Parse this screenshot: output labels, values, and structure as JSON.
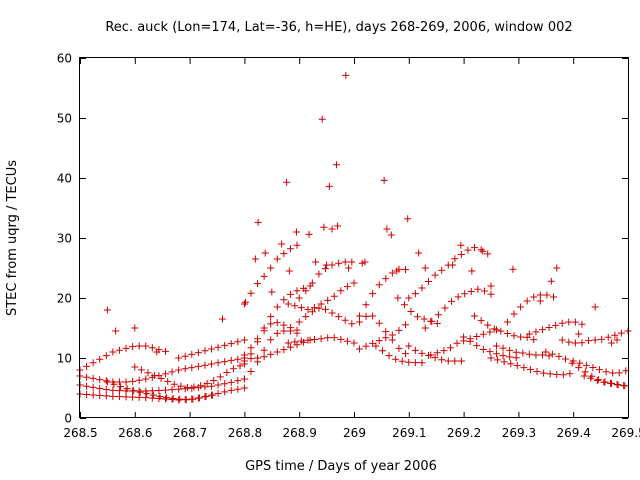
{
  "chart_data": {
    "type": "scatter",
    "title": "Rec. auck (Lon=174, Lat=-36, h=HE), days 268-269, 2006, window 002",
    "xlabel": "GPS time / Days of year 2006",
    "ylabel": "STEC from uqrg / TECUs",
    "xlim": [
      268.5,
      269.5
    ],
    "ylim": [
      0,
      60
    ],
    "x_ticks": [
      "268.5",
      "268.6",
      "268.7",
      "268.8",
      "268.9",
      "269",
      "269.1",
      "269.2",
      "269.3",
      "269.4",
      "269.5"
    ],
    "y_ticks": [
      "0",
      "10",
      "20",
      "30",
      "40",
      "50",
      "60"
    ],
    "marker": "plus",
    "color": "#d00000",
    "grid": false,
    "legend": "none",
    "series": [
      {
        "tracks": [
          {
            "x0": 268.5,
            "x1": 268.8,
            "y": [
              5.5,
              5.0,
              4.6,
              4.5,
              4.5,
              4.6,
              4.8,
              5.0,
              5.3,
              5.8,
              6.5
            ]
          },
          {
            "x0": 268.5,
            "x1": 268.8,
            "y": [
              7.0,
              6.5,
              6.0,
              6.0,
              6.5,
              7.2,
              8.0,
              8.5,
              9.0,
              9.5,
              10.0
            ]
          },
          {
            "x0": 268.5,
            "x1": 268.66,
            "y": [
              8.0,
              9.0,
              10.0,
              11.0,
              11.5,
              12.0,
              12.0,
              11.5,
              11.0
            ]
          },
          {
            "x0": 268.5,
            "x1": 268.8,
            "y": [
              4.0,
              3.8,
              3.6,
              3.5,
              3.4,
              3.2,
              3.0,
              3.2,
              3.8,
              4.5,
              5.0
            ]
          },
          {
            "x0": 268.55,
            "x1": 268.75,
            "y": [
              6.0,
              5.2,
              4.5,
              4.0,
              3.5,
              3.2,
              3.0,
              3.5,
              4.0
            ]
          },
          {
            "x0": 268.6,
            "x1": 268.8,
            "y": [
              8.5,
              7.5,
              6.5,
              5.5,
              5.0,
              5.5,
              6.5,
              8.0,
              9.0
            ]
          },
          {
            "x0": 268.68,
            "x1": 268.8,
            "y": [
              10.0,
              10.5,
              11.0,
              11.5,
              12.0,
              12.5,
              13.0
            ]
          },
          {
            "x0": 268.8,
            "x1": 268.9,
            "y": [
              6.5,
              8.0,
              10.0,
              12.5,
              14.0,
              14.5,
              14.5,
              14.0
            ]
          },
          {
            "x0": 268.8,
            "x1": 268.9,
            "y": [
              9.0,
              11.0,
              13.5,
              15.5,
              16.0,
              15.5,
              15.0,
              14.5
            ]
          },
          {
            "x0": 268.8,
            "x1": 268.92,
            "y": [
              9.5,
              10.0,
              10.0,
              10.5,
              11.0,
              11.5,
              12.0,
              12.5,
              13.0
            ]
          },
          {
            "x0": 268.8,
            "x1": 268.92,
            "y": [
              10.5,
              12.0,
              14.0,
              16.5,
              18.5,
              20.0,
              21.0,
              21.5,
              22.0
            ]
          },
          {
            "x0": 268.8,
            "x1": 268.9,
            "y": [
              19.0,
              22.0,
              24.0,
              26.5,
              28.0,
              29.0
            ]
          },
          {
            "x0": 268.88,
            "x1": 269.0,
            "y": [
              12.5,
              12.8,
              13.0,
              13.2,
              13.5,
              13.0,
              12.5
            ]
          },
          {
            "x0": 268.88,
            "x1": 269.0,
            "y": [
              19.0,
              18.5,
              18.0,
              19.0,
              20.0,
              21.5,
              22.5
            ]
          },
          {
            "x0": 268.9,
            "x1": 269.0,
            "y": [
              16.0,
              17.5,
              18.5,
              17.5,
              16.5,
              15.5
            ]
          },
          {
            "x0": 268.9,
            "x1": 269.0,
            "y": [
              20.0,
              22.0,
              24.5,
              25.5,
              26.0,
              26.0
            ]
          },
          {
            "x0": 269.01,
            "x1": 269.1,
            "y": [
              11.5,
              12.0,
              12.5,
              13.0,
              13.5,
              14.0,
              15.0,
              16.0
            ]
          },
          {
            "x0": 269.01,
            "x1": 269.1,
            "y": [
              16.0,
              17.0,
              17.0,
              15.5,
              14.0,
              12.5,
              11.0,
              10.5
            ]
          },
          {
            "x0": 269.01,
            "x1": 269.1,
            "y": [
              17.0,
              19.0,
              21.0,
              22.5,
              23.5,
              24.5,
              25.0,
              24.5
            ]
          },
          {
            "x0": 269.04,
            "x1": 269.13,
            "y": [
              12.0,
              11.0,
              10.0,
              9.5,
              9.3,
              9.2,
              9.2
            ]
          },
          {
            "x0": 269.08,
            "x1": 269.16,
            "y": [
              20.0,
              18.5,
              17.0,
              16.5,
              16.0,
              15.5
            ]
          },
          {
            "x0": 269.1,
            "x1": 269.2,
            "y": [
              12.0,
              11.0,
              10.5,
              10.0,
              9.5,
              9.5,
              9.5
            ]
          },
          {
            "x0": 269.1,
            "x1": 269.25,
            "y": [
              20.0,
              21.0,
              22.5,
              24.0,
              25.0,
              26.5,
              27.5,
              28.5,
              28.0,
              27.0
            ]
          },
          {
            "x0": 269.13,
            "x1": 269.26,
            "y": [
              15.0,
              16.5,
              18.0,
              19.5,
              20.5,
              21.0,
              21.5,
              21.0,
              20.0
            ]
          },
          {
            "x0": 269.14,
            "x1": 269.27,
            "y": [
              10.5,
              11.0,
              11.5,
              12.5,
              13.0,
              13.5,
              14.0,
              14.5,
              15.0
            ]
          },
          {
            "x0": 269.2,
            "x1": 269.3,
            "y": [
              13.5,
              12.5,
              11.5,
              11.0,
              10.5,
              10.2,
              10.0
            ]
          },
          {
            "x0": 269.22,
            "x1": 269.33,
            "y": [
              17.0,
              16.0,
              15.0,
              14.5,
              14.0,
              13.5,
              13.5,
              13.0
            ]
          },
          {
            "x0": 269.25,
            "x1": 269.4,
            "y": [
              10.0,
              9.5,
              9.0,
              8.5,
              8.0,
              7.5,
              7.3,
              7.2,
              7.5
            ]
          },
          {
            "x0": 269.26,
            "x1": 269.36,
            "y": [
              12.0,
              11.5,
              11.0,
              10.8,
              10.5,
              10.5,
              10.3
            ]
          },
          {
            "x0": 269.28,
            "x1": 269.37,
            "y": [
              16.0,
              18.0,
              19.5,
              20.5,
              20.5,
              20.0
            ]
          },
          {
            "x0": 269.32,
            "x1": 269.42,
            "y": [
              14.0,
              14.5,
              15.0,
              15.5,
              16.0,
              16.0,
              15.5
            ]
          },
          {
            "x0": 269.35,
            "x1": 269.5,
            "y": [
              11.0,
              10.5,
              10.0,
              9.0,
              8.0,
              7.0,
              6.2,
              5.8,
              5.5,
              5.3
            ]
          },
          {
            "x0": 269.38,
            "x1": 269.5,
            "y": [
              13.0,
              12.5,
              12.5,
              13.0,
              13.0,
              13.5,
              14.0,
              14.5
            ]
          },
          {
            "x0": 269.4,
            "x1": 269.5,
            "y": [
              9.5,
              9.0,
              8.5,
              8.0,
              7.5,
              7.5,
              8.0
            ]
          },
          {
            "x0": 269.42,
            "x1": 269.5,
            "y": [
              7.0,
              6.5,
              6.0,
              5.8,
              5.5,
              5.3
            ]
          }
        ],
        "points": [
          [
            268.55,
            18.0
          ],
          [
            268.565,
            14.5
          ],
          [
            268.6,
            15.0
          ],
          [
            268.64,
            11.0
          ],
          [
            268.76,
            16.5
          ],
          [
            268.802,
            19.3
          ],
          [
            268.82,
            26.5
          ],
          [
            268.825,
            32.6
          ],
          [
            268.838,
            27.5
          ],
          [
            268.85,
            21.0
          ],
          [
            268.868,
            29.0
          ],
          [
            268.877,
            39.3
          ],
          [
            268.882,
            24.5
          ],
          [
            268.895,
            31.0
          ],
          [
            268.918,
            30.6
          ],
          [
            268.93,
            26.0
          ],
          [
            268.942,
            49.8
          ],
          [
            268.945,
            31.8
          ],
          [
            268.95,
            25.5
          ],
          [
            268.955,
            38.6
          ],
          [
            268.96,
            31.5
          ],
          [
            268.968,
            42.2
          ],
          [
            268.97,
            32.0
          ],
          [
            268.985,
            57.1
          ],
          [
            268.99,
            25.0
          ],
          [
            269.015,
            25.8
          ],
          [
            269.02,
            26.0
          ],
          [
            269.055,
            39.6
          ],
          [
            269.06,
            31.5
          ],
          [
            269.068,
            30.5
          ],
          [
            269.078,
            24.5
          ],
          [
            269.098,
            33.2
          ],
          [
            269.118,
            27.5
          ],
          [
            269.13,
            25.0
          ],
          [
            269.18,
            25.5
          ],
          [
            269.195,
            28.8
          ],
          [
            269.215,
            24.5
          ],
          [
            269.235,
            27.8
          ],
          [
            269.25,
            22.0
          ],
          [
            269.29,
            24.8
          ],
          [
            269.34,
            19.5
          ],
          [
            269.36,
            22.8
          ],
          [
            269.37,
            25.0
          ],
          [
            269.41,
            14.0
          ],
          [
            269.44,
            18.5
          ],
          [
            269.47,
            12.5
          ],
          [
            269.48,
            13.0
          ]
        ]
      }
    ]
  }
}
